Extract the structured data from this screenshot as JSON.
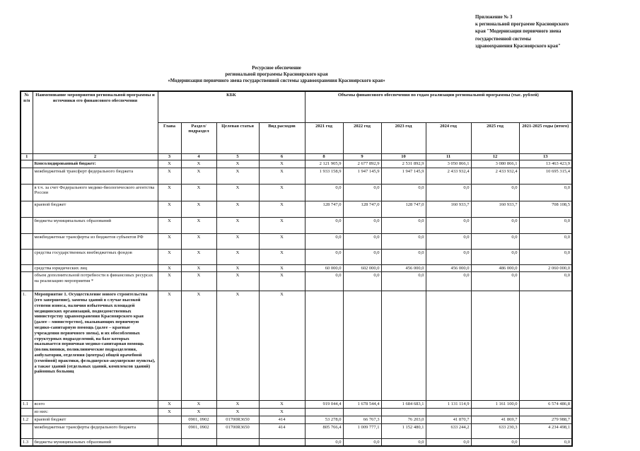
{
  "annotation": {
    "lines": [
      "Приложение № 3",
      "к региональной программе Красноярского",
      "края \"Модернизация первичного звена",
      "государственной системы",
      "здравоохранения Красноярского края\""
    ]
  },
  "title": {
    "lines": [
      "Ресурсное  обеспечение",
      "региональной программы Красноярского края",
      "«Модернизация первичного звена государственной системы здравоохранения Красноярского края»"
    ]
  },
  "table": {
    "header": {
      "num": "№ п/п",
      "name": "Наименование мероприятия региональной программы и источники его финансового обеспечения",
      "kbk": "КБК",
      "volumes": "Объемы финансового обеспечения по годам реализации региональной программы (тыс. рублей)",
      "sub": [
        "Глава",
        "Раздел/ подраздел",
        "Целевая статья",
        "Вид расходов",
        "2021 год",
        "2022 год",
        "2023 год",
        "2024 год",
        "2025 год",
        "2021-2025 годы (итого)"
      ]
    },
    "col_numbers": [
      "1",
      "2",
      "3",
      "4",
      "5",
      "6",
      "8",
      "9",
      "10",
      "11",
      "12",
      "13"
    ],
    "rows": [
      {
        "num": "",
        "name": "Консолидированный бюджет:",
        "bold": true,
        "kbk": [
          "X",
          "X",
          "X",
          "X"
        ],
        "values": [
          "2 121 905,9",
          "2 677 892,9",
          "2 531 892,9",
          "3 050 866,1",
          "3 080 866,1",
          "13 463 423,9"
        ]
      },
      {
        "num": "",
        "name": "межбюджетный трансферт федерального бюджета",
        "bold": false,
        "kbk": [
          "X",
          "X",
          "X",
          "X"
        ],
        "values": [
          "1 933 158,9",
          "1 947 145,9",
          "1 947 145,9",
          "2 433 932,4",
          "2 433 932,4",
          "10 695 315,4"
        ]
      },
      {
        "num": "",
        "name": "в т.ч. за счет Федерального медико-биологического агентства России",
        "bold": false,
        "kbk": [
          "X",
          "X",
          "X",
          "X"
        ],
        "values": [
          "0,0",
          "0,0",
          "0,0",
          "0,0",
          "0,0",
          "0,0"
        ]
      },
      {
        "num": "",
        "name": "краевой бюджет",
        "bold": false,
        "kbk": [
          "X",
          "X",
          "X",
          "X"
        ],
        "values": [
          "128 747,0",
          "128 747,0",
          "128 747,0",
          "160 933,7",
          "160 933,7",
          "708 108,5"
        ]
      },
      {
        "num": "",
        "name": "бюджеты муниципальных образований",
        "bold": false,
        "kbk": [
          "X",
          "X",
          "X",
          "X"
        ],
        "values": [
          "0,0",
          "0,0",
          "0,0",
          "0,0",
          "0,0",
          "0,0"
        ]
      },
      {
        "num": "",
        "name": "межбюджетные трансферты из бюджетов субъектов РФ",
        "bold": false,
        "kbk": [
          "X",
          "X",
          "X",
          "X"
        ],
        "values": [
          "0,0",
          "0,0",
          "0,0",
          "0,0",
          "0,0",
          "0,0"
        ]
      },
      {
        "num": "",
        "name": "средства государственных внебюджетных фондов",
        "bold": false,
        "kbk": [
          "X",
          "X",
          "X",
          "X"
        ],
        "values": [
          "0,0",
          "0,0",
          "0,0",
          "0,0",
          "0,0",
          "0,0"
        ]
      },
      {
        "num": "",
        "name": "средства юридических лиц",
        "bold": false,
        "kbk": [
          "X",
          "X",
          "X",
          "X"
        ],
        "values": [
          "60 000,0",
          "602 000,0",
          "456 000,0",
          "456 000,0",
          "486 000,0",
          "2 060 000,0"
        ]
      },
      {
        "num": "",
        "name": "объем дополнительной потребности в финансовых ресурсах на реализацию мероприятия *",
        "bold": false,
        "kbk": [
          "X",
          "X",
          "X",
          "X"
        ],
        "values": [
          "0,0",
          "0,0",
          "0,0",
          "0,0",
          "0,0",
          "0,0"
        ]
      },
      {
        "num": "1.",
        "name": "Мероприятие 1. Осуществление нового строительства (его завершение), замены зданий в случае высокой степени износа, наличия избыточных площадей медицинских организаций, подведомственных министерству здравоохранения Красноярского края (далее – министерство), оказывающих первичную медико-санитарную помощь (далее – краевые учреждения первичного звена), и их обособленных структурных подразделений, на базе которых оказывается первичная медико-санитарная помощь (поликлиники, поликлинические подразделения, амбулатории, отделения (центры) общей врачебной (семейной) практики, фельдшерско-акушерские пункты), а также зданий (отдельных зданий, комплексов зданий) районных больниц",
        "bold": true,
        "kbk": [
          "X",
          "X",
          "X",
          "X"
        ],
        "values": [
          "",
          "",
          "",
          "",
          "",
          ""
        ]
      },
      {
        "num": "1.1",
        "name": "всего",
        "bold": false,
        "kbk": [
          "X",
          "X",
          "X",
          "X"
        ],
        "values": [
          "919 044,4",
          "1 678 544,4",
          "1 684 683,1",
          "1 131 114,9",
          "1 161 100,0",
          "6 574 486,8"
        ]
      },
      {
        "num": "",
        "name": "из них:",
        "bold": false,
        "kbk": [
          "X",
          "X",
          "X",
          "X"
        ],
        "values": [
          "",
          "",
          "",
          "",
          "",
          ""
        ]
      },
      {
        "num": "1.2",
        "name": "краевой бюджет",
        "bold": false,
        "kbk": [
          "",
          "0901, 0902",
          "01700R3650",
          "414"
        ],
        "values": [
          "53 278,0",
          "66 767,3",
          "76 203,0",
          "41 870,7",
          "41 869,7",
          "279 988,7"
        ]
      },
      {
        "num": "",
        "name": "межбюджетные трансферты федерального бюджета",
        "bold": false,
        "kbk": [
          "",
          "0901, 0902",
          "01700R3650",
          "414"
        ],
        "values": [
          "805 766,4",
          "1 009 777,1",
          "1 152 480,1",
          "633 244,2",
          "633 230,3",
          "4 234 498,1"
        ]
      },
      {
        "num": "1.3",
        "name": "бюджеты муниципальных образований",
        "bold": false,
        "kbk": [
          "",
          "",
          "",
          ""
        ],
        "values": [
          "0,0",
          "0,0",
          "0,0",
          "0,0",
          "0,0",
          "0,0"
        ]
      }
    ]
  }
}
